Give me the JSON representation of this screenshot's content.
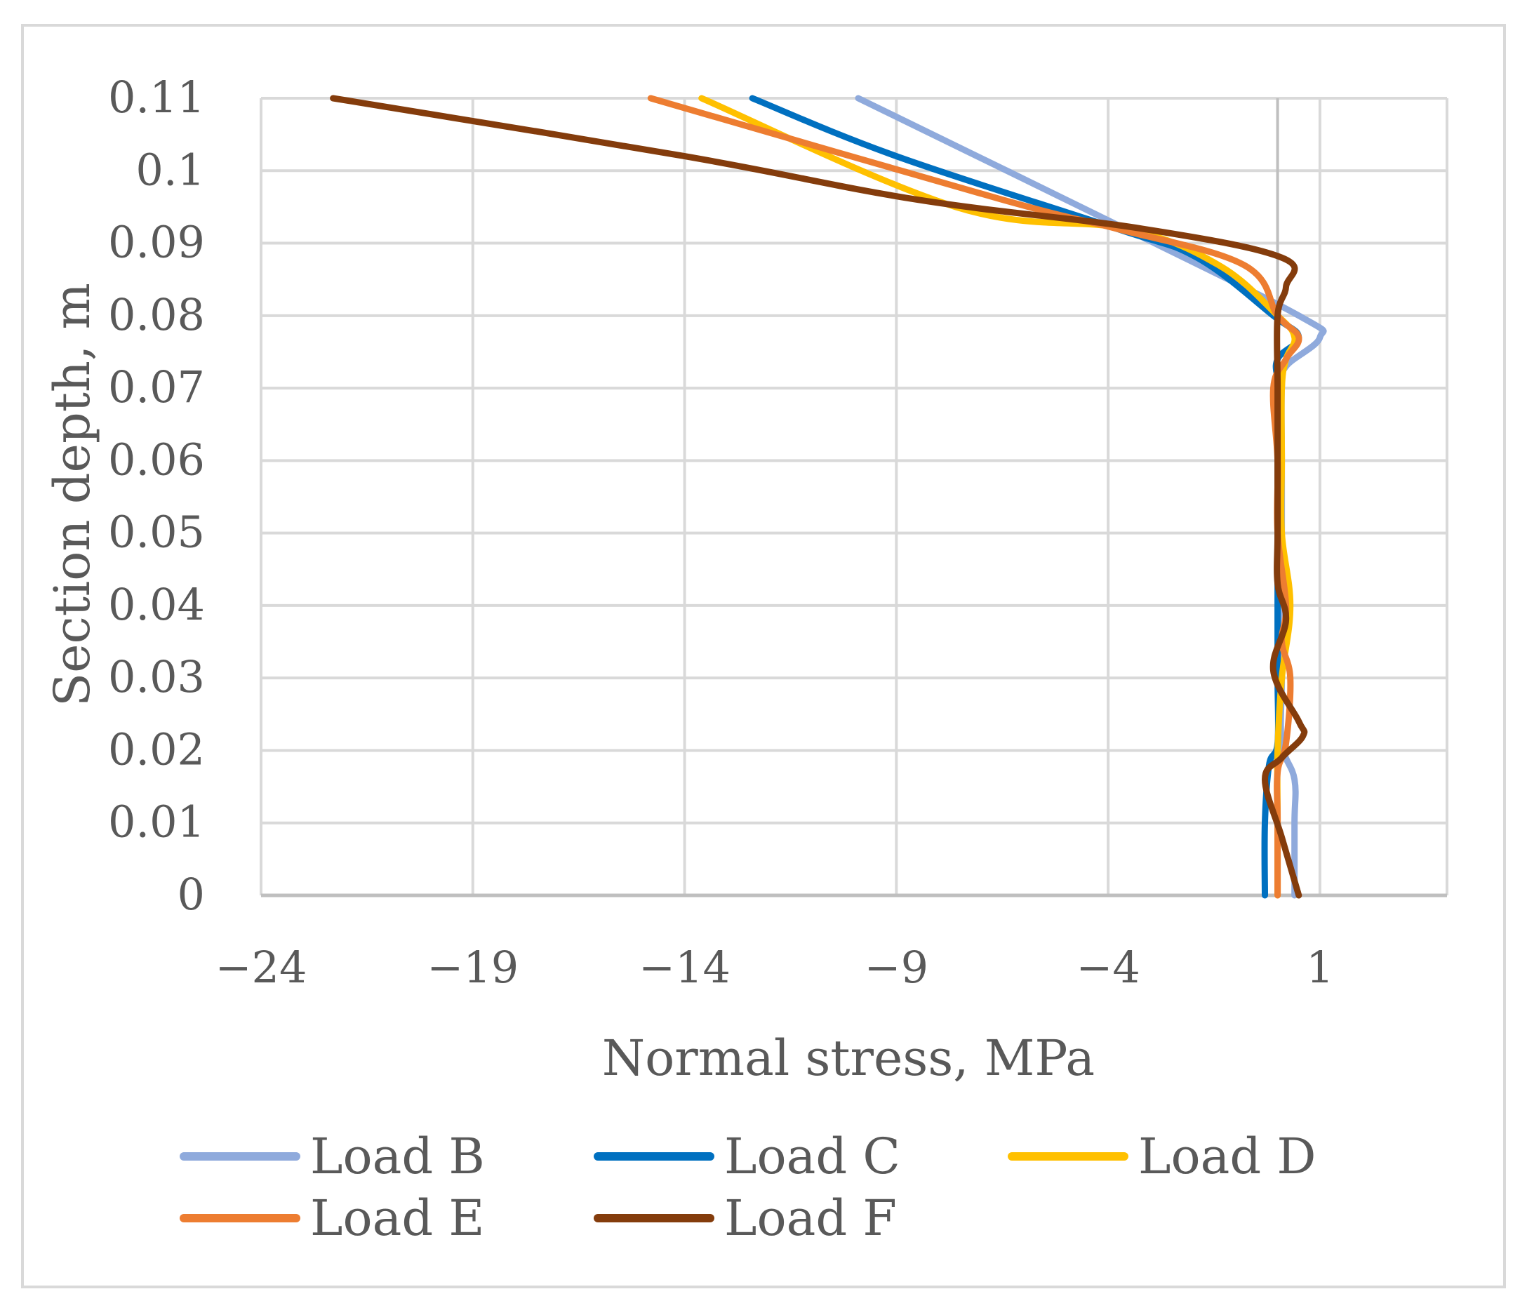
{
  "chart_data": {
    "type": "line",
    "xlabel": "Normal stress, MPa",
    "ylabel": "Section depth, m",
    "xlim": [
      -24,
      4
    ],
    "ylim": [
      0,
      0.11
    ],
    "x_ticks": [
      -24,
      -19,
      -14,
      -9,
      -4,
      1
    ],
    "x_tick_labels": [
      "−24",
      "−19",
      "−14",
      "−9",
      "−4",
      "1"
    ],
    "y_ticks": [
      0,
      0.01,
      0.02,
      0.03,
      0.04,
      0.05,
      0.06,
      0.07,
      0.08,
      0.09,
      0.1,
      0.11
    ],
    "y_tick_labels": [
      "0",
      "0.01",
      "0.02",
      "0.03",
      "0.04",
      "0.05",
      "0.06",
      "0.07",
      "0.08",
      "0.09",
      "0.1",
      "0.11"
    ],
    "grid": true,
    "legend_position": "bottom",
    "series": [
      {
        "name": "Load B",
        "color": "#8faadc",
        "points": [
          [
            0.4,
            0
          ],
          [
            0.4,
            0.01
          ],
          [
            0.4,
            0.016
          ],
          [
            0.1,
            0.021
          ],
          [
            0.1,
            0.03
          ],
          [
            0.1,
            0.04
          ],
          [
            0.1,
            0.05
          ],
          [
            0.1,
            0.06
          ],
          [
            0.1,
            0.07
          ],
          [
            0.2,
            0.073
          ],
          [
            1.0,
            0.077
          ],
          [
            0.5,
            0.08
          ],
          [
            -3.6,
            0.092
          ],
          [
            -9.9,
            0.11
          ]
        ]
      },
      {
        "name": "Load C",
        "color": "#0070c0",
        "points": [
          [
            -0.3,
            0
          ],
          [
            -0.3,
            0.01
          ],
          [
            -0.2,
            0.018
          ],
          [
            0.0,
            0.021
          ],
          [
            0.0,
            0.03
          ],
          [
            0.0,
            0.04
          ],
          [
            0.0,
            0.05
          ],
          [
            0.0,
            0.06
          ],
          [
            0.0,
            0.07
          ],
          [
            0.0,
            0.074
          ],
          [
            0.5,
            0.077
          ],
          [
            -0.1,
            0.08
          ],
          [
            -1.9,
            0.088
          ],
          [
            -3.8,
            0.092
          ],
          [
            -9.0,
            0.102
          ],
          [
            -12.4,
            0.11
          ]
        ]
      },
      {
        "name": "Load D",
        "color": "#ffc000",
        "points": [
          [
            0.0,
            0
          ],
          [
            0.0,
            0.01
          ],
          [
            0.0,
            0.02
          ],
          [
            0.1,
            0.03
          ],
          [
            0.3,
            0.04
          ],
          [
            0.1,
            0.05
          ],
          [
            0.1,
            0.06
          ],
          [
            0.1,
            0.07
          ],
          [
            0.2,
            0.074
          ],
          [
            0.4,
            0.077
          ],
          [
            0.0,
            0.08
          ],
          [
            -1.4,
            0.087
          ],
          [
            -3.6,
            0.092
          ],
          [
            -7.6,
            0.095
          ],
          [
            -13.6,
            0.11
          ]
        ]
      },
      {
        "name": "Load E",
        "color": "#ed7d31",
        "points": [
          [
            0.0,
            0
          ],
          [
            0.0,
            0.01
          ],
          [
            0.0,
            0.017
          ],
          [
            0.2,
            0.021
          ],
          [
            0.3,
            0.03
          ],
          [
            0.1,
            0.035
          ],
          [
            0.2,
            0.04
          ],
          [
            0.0,
            0.05
          ],
          [
            0.0,
            0.06
          ],
          [
            -0.1,
            0.07
          ],
          [
            0.2,
            0.074
          ],
          [
            0.5,
            0.077
          ],
          [
            0.0,
            0.08
          ],
          [
            -0.8,
            0.087
          ],
          [
            -3.8,
            0.092
          ],
          [
            -6.5,
            0.096
          ],
          [
            -14.8,
            0.11
          ]
        ]
      },
      {
        "name": "Load F",
        "color": "#843c0c",
        "points": [
          [
            0.5,
            0
          ],
          [
            0.1,
            0.008
          ],
          [
            -0.3,
            0.016
          ],
          [
            0.1,
            0.019
          ],
          [
            0.6,
            0.022
          ],
          [
            0.5,
            0.024
          ],
          [
            -0.1,
            0.031
          ],
          [
            0.2,
            0.038
          ],
          [
            0.0,
            0.043
          ],
          [
            0.0,
            0.05
          ],
          [
            0.0,
            0.06
          ],
          [
            0.0,
            0.07
          ],
          [
            0.0,
            0.08
          ],
          [
            0.2,
            0.084
          ],
          [
            0.1,
            0.088
          ],
          [
            -3.2,
            0.092
          ],
          [
            -8.5,
            0.096
          ],
          [
            -14.0,
            0.102
          ],
          [
            -22.3,
            0.11
          ]
        ]
      }
    ]
  }
}
